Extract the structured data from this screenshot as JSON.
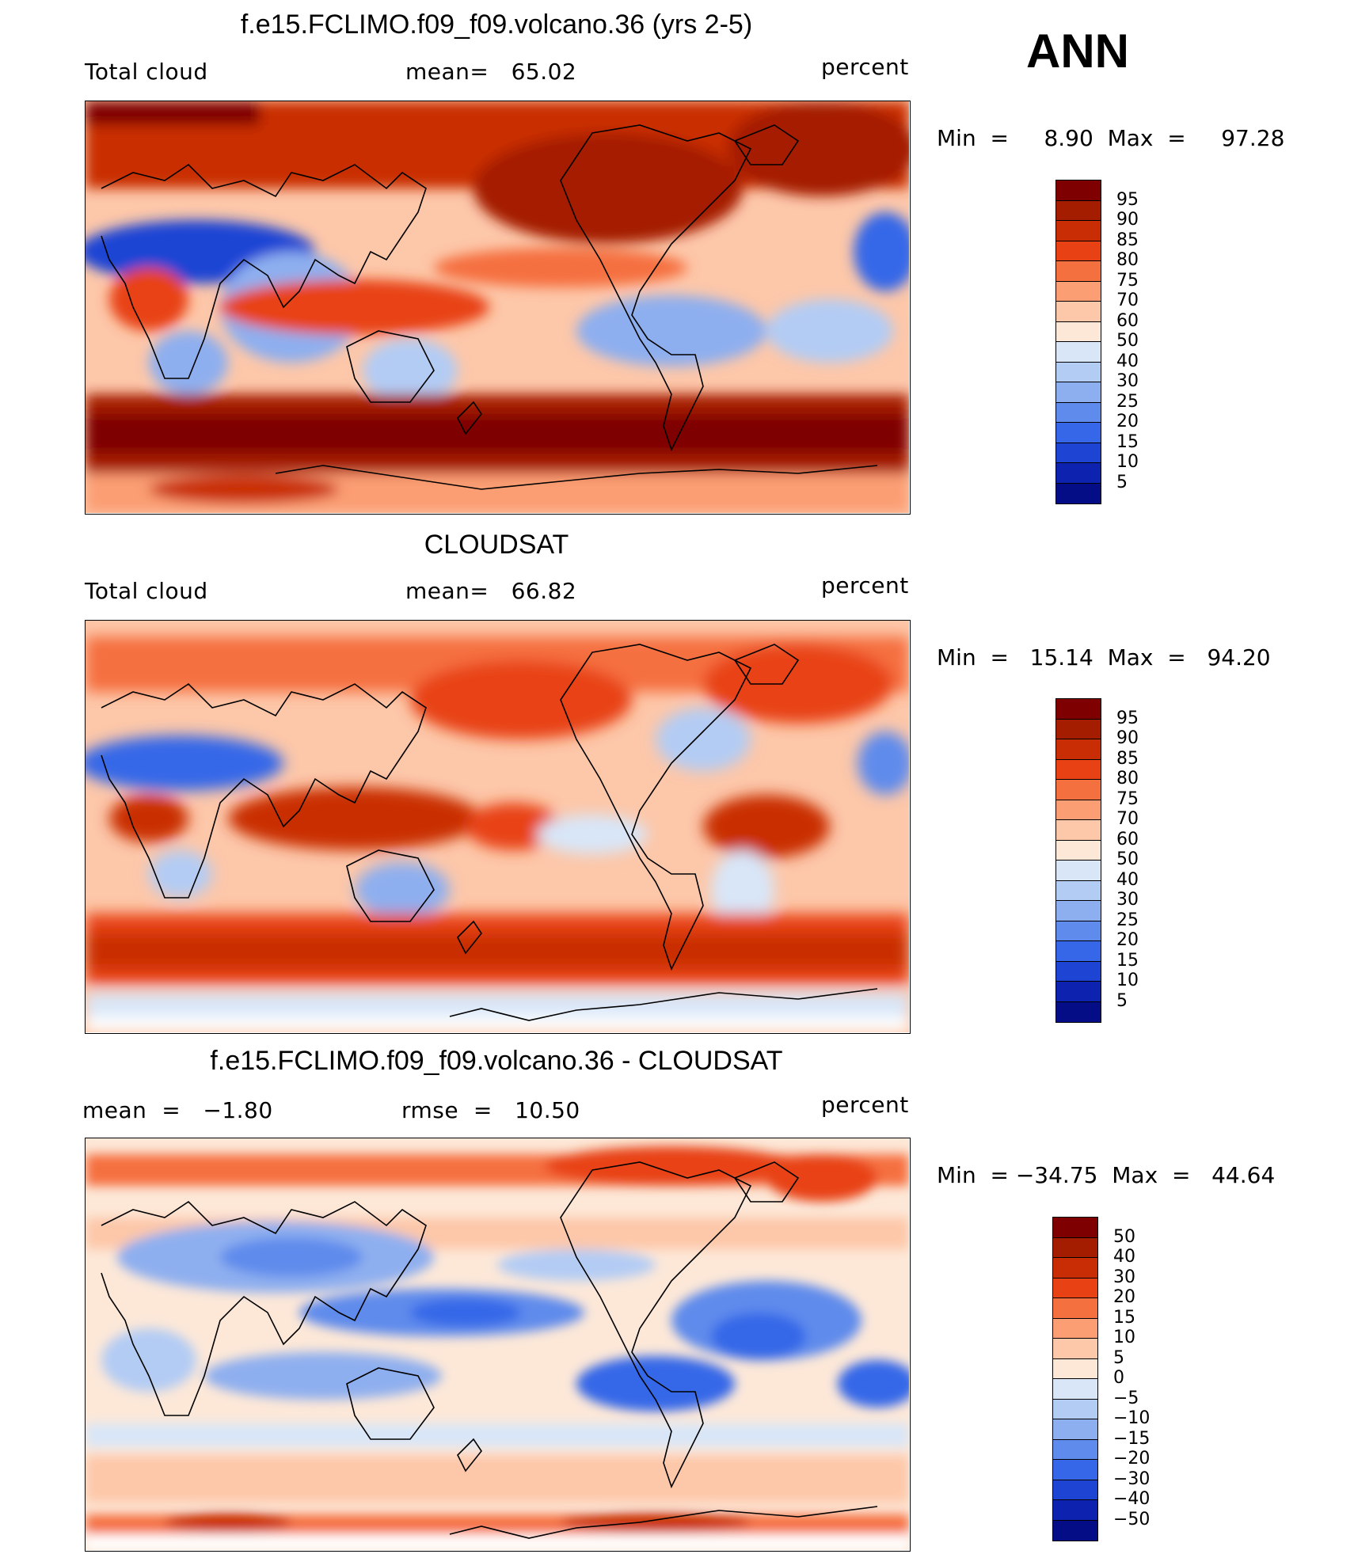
{
  "season": "ANN",
  "panels": [
    {
      "title": "f.e15.FCLIMO.f09_f09.volcano.36 (yrs 2-5)",
      "left_label": "Total cloud",
      "center_label": "mean=   65.02",
      "units": "percent",
      "minmax": "Min  =     8.90  Max  =     97.28",
      "colorbar_levels": [
        "95",
        "90",
        "85",
        "80",
        "75",
        "70",
        "60",
        "50",
        "40",
        "30",
        "25",
        "20",
        "15",
        "10",
        "5"
      ]
    },
    {
      "title": "CLOUDSAT",
      "left_label": "Total cloud",
      "center_label": "mean=   66.82",
      "units": "percent",
      "minmax": "Min  =   15.14  Max  =   94.20",
      "colorbar_levels": [
        "95",
        "90",
        "85",
        "80",
        "75",
        "70",
        "60",
        "50",
        "40",
        "30",
        "25",
        "20",
        "15",
        "10",
        "5"
      ]
    },
    {
      "title": "f.e15.FCLIMO.f09_f09.volcano.36 - CLOUDSAT",
      "left_label": "mean  =   −1.80",
      "center_label": "rmse  =   10.50",
      "units": "percent",
      "minmax": "Min  = −34.75  Max  =   44.64",
      "colorbar_levels": [
        "50",
        "40",
        "30",
        "20",
        "15",
        "10",
        "5",
        "0",
        "−5",
        "−10",
        "−15",
        "−20",
        "−30",
        "−40",
        "−50"
      ]
    }
  ],
  "colors": {
    "abs_scale": [
      "#7f0000",
      "#a51d00",
      "#c92d06",
      "#e84214",
      "#f5703f",
      "#fb9e73",
      "#fdc7a9",
      "#fde8d8",
      "#d8e6f8",
      "#b3ccf4",
      "#8eafef",
      "#5e8bec",
      "#3567e8",
      "#1e44d4",
      "#0e22b0",
      "#040c86"
    ],
    "diff_scale": [
      "#7f0000",
      "#a51d00",
      "#c92d06",
      "#e84214",
      "#f5703f",
      "#fb9e73",
      "#fdc7a9",
      "#fde8d8",
      "#d8e6f8",
      "#b3ccf4",
      "#8eafef",
      "#5e8bec",
      "#3567e8",
      "#1e44d4",
      "#0e22b0",
      "#040c86"
    ]
  }
}
